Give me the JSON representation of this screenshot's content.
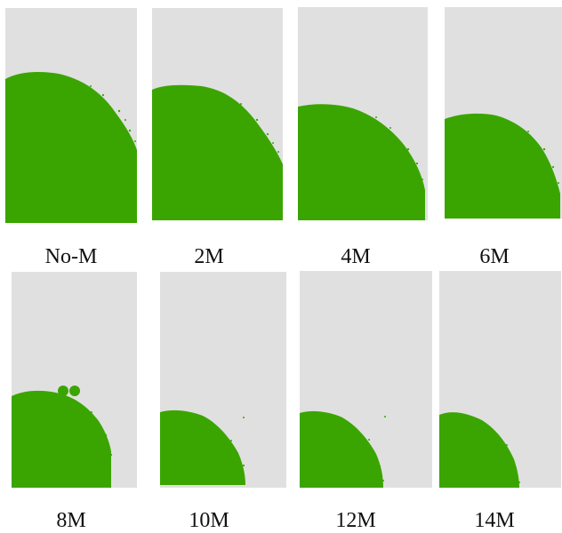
{
  "colors": {
    "background": "#e0e0e0",
    "tumor": "#3aa500"
  },
  "panels": [
    {
      "label": "No-M"
    },
    {
      "label": "2M"
    },
    {
      "label": "4M"
    },
    {
      "label": "6M"
    },
    {
      "label": "8M"
    },
    {
      "label": "10M"
    },
    {
      "label": "12M"
    },
    {
      "label": "14M"
    }
  ]
}
